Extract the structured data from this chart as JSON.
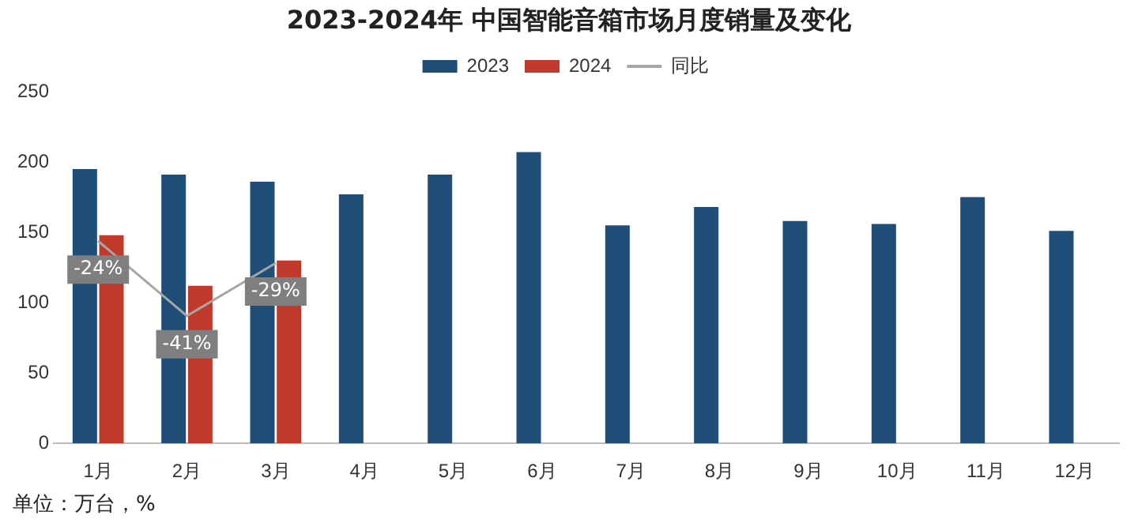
{
  "chart_data": {
    "type": "bar",
    "title": "2023-2024年 中国智能音箱市场月度销量及变化",
    "categories": [
      "1月",
      "2月",
      "3月",
      "4月",
      "5月",
      "6月",
      "7月",
      "8月",
      "9月",
      "10月",
      "11月",
      "12月"
    ],
    "series": [
      {
        "name": "2023",
        "color": "#1f4e79",
        "values": [
          195,
          191,
          186,
          177,
          191,
          207,
          155,
          168,
          158,
          156,
          175,
          151
        ]
      },
      {
        "name": "2024",
        "color": "#c0392b",
        "values": [
          148,
          112,
          130,
          null,
          null,
          null,
          null,
          null,
          null,
          null,
          null,
          null
        ]
      },
      {
        "name": "同比",
        "type": "line",
        "axis": "y2",
        "color": "#a6a6a6",
        "marker": "none",
        "values": [
          -24,
          -41,
          -29,
          null,
          null,
          null,
          null,
          null,
          null,
          null,
          null,
          null
        ],
        "value_labels": [
          "-24%",
          "-41%",
          "-29%",
          null,
          null,
          null,
          null,
          null,
          null,
          null,
          null,
          null
        ]
      }
    ],
    "ylim": [
      0,
      250
    ],
    "yticks": [
      0,
      50,
      100,
      150,
      200,
      250
    ],
    "grid": false,
    "legend": "top",
    "annotations": [
      "单位：万台，%"
    ]
  }
}
